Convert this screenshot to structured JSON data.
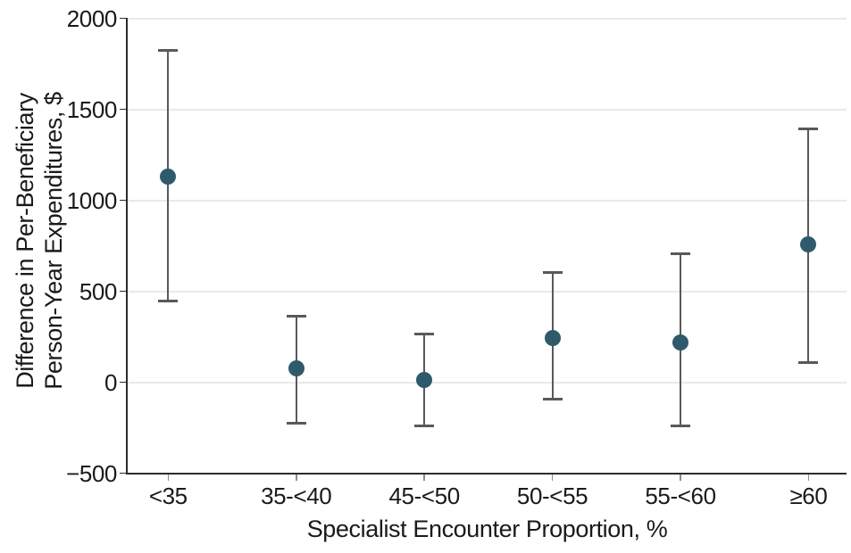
{
  "chart_data": {
    "type": "scatter",
    "subtype": "point-estimates-with-error-bars",
    "title": "",
    "xlabel": "Specialist Encounter Proportion, %",
    "ylabel_line1": "Difference in Per-Beneficiary",
    "ylabel_line2": "Person-Year Expenditures, $",
    "categories": [
      "<35",
      "35-<40",
      "45-<50",
      "50-<55",
      "55-<60",
      "≥60"
    ],
    "series": [
      {
        "name": "Difference in per-beneficiary person-year expenditures, $",
        "estimates": [
          1130,
          75,
          10,
          245,
          220,
          755
        ],
        "ci_lower": [
          445,
          -225,
          -240,
          -95,
          -240,
          110
        ],
        "ci_upper": [
          1825,
          365,
          265,
          605,
          705,
          1390
        ]
      }
    ],
    "ylim": [
      -500,
      2000
    ],
    "y_ticks": [
      2000,
      1500,
      1000,
      500,
      0,
      -500
    ],
    "y_tick_labels": [
      "2000",
      "1500",
      "1000",
      "500",
      "0",
      "−500"
    ],
    "grid": "horizontal-only",
    "legend": "none"
  },
  "colors": {
    "point": "#2F5A6B",
    "error_bar": "#595959",
    "axis": "#2b2b2b",
    "gridline": "#e9e9e9",
    "x_tick": "#8c8c8c",
    "text": "#1a1a1a",
    "background": "#ffffff"
  }
}
